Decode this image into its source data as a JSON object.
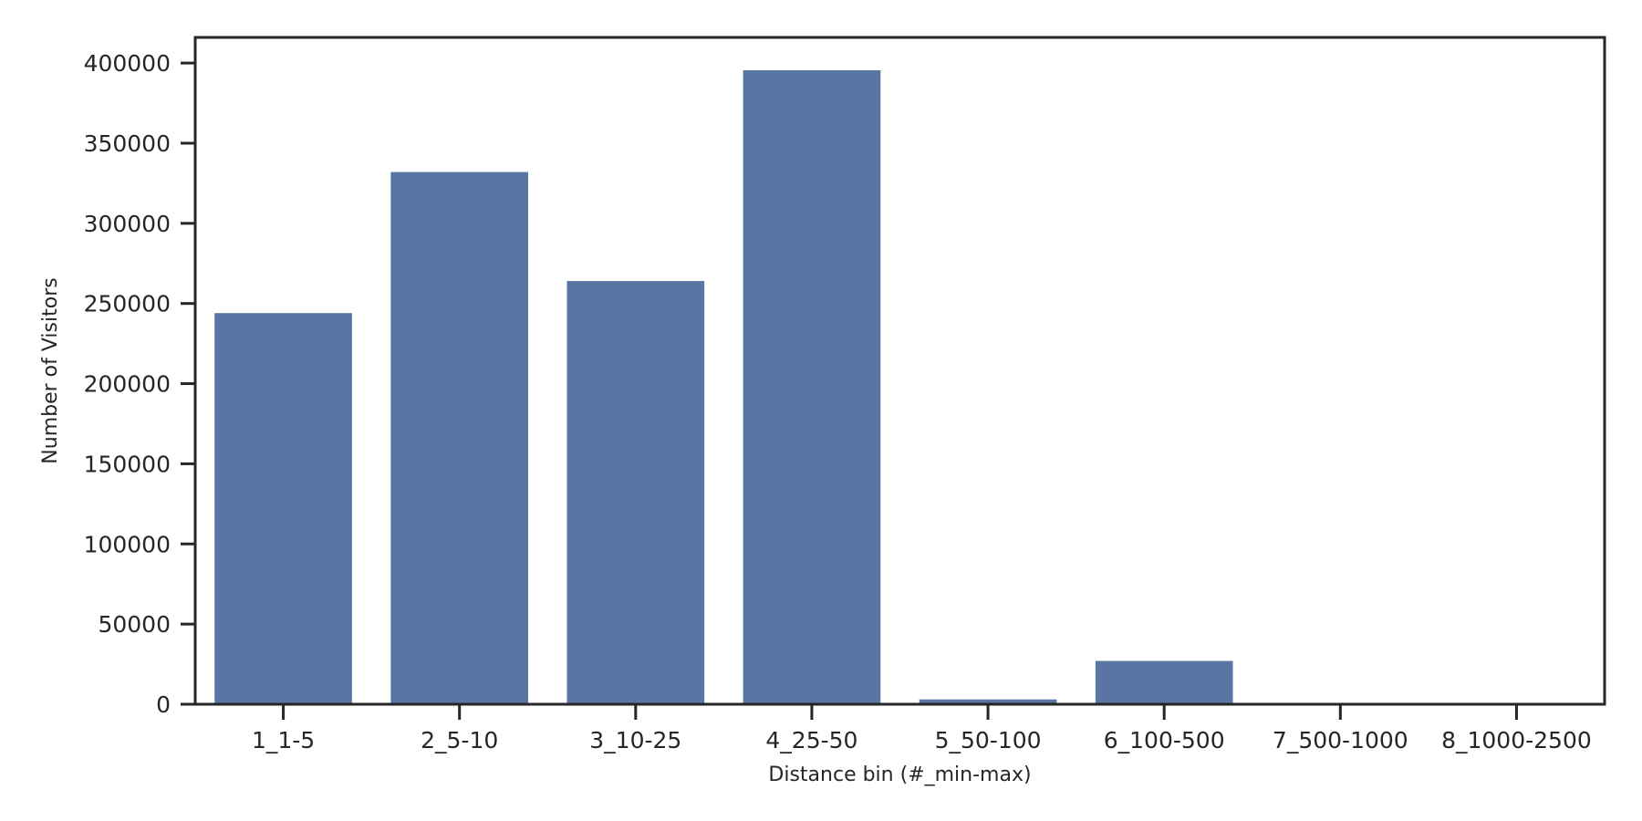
{
  "chart_data": {
    "type": "bar",
    "title": "",
    "xlabel": "Distance bin (#_min-max)",
    "ylabel": "Number of Visitors",
    "categories": [
      "1_1-5",
      "2_5-10",
      "3_10-25",
      "4_25-50",
      "5_50-100",
      "6_100-500",
      "7_500-1000",
      "8_1000-2500"
    ],
    "values": [
      244000,
      332000,
      264000,
      395500,
      3000,
      27000,
      0,
      0
    ],
    "ylim": [
      0,
      416000
    ],
    "yticks": [
      0,
      50000,
      100000,
      150000,
      200000,
      250000,
      300000,
      350000,
      400000
    ],
    "grid": false,
    "legend": "none",
    "bar_color": "#5975a4",
    "axis_color": "#262626"
  }
}
